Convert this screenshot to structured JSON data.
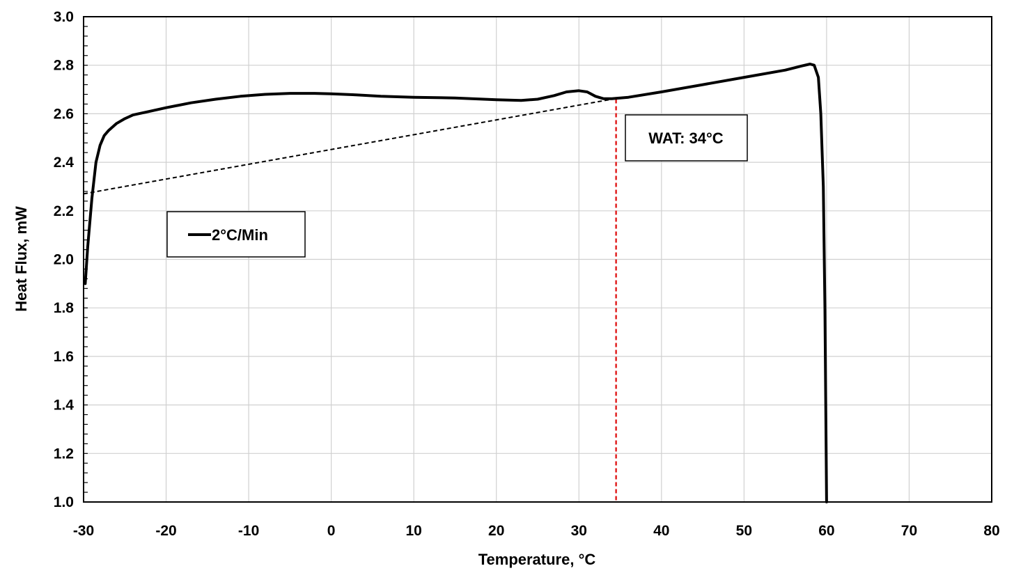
{
  "chart_data": {
    "type": "line",
    "xlabel": "Temperature, °C",
    "ylabel": "Heat Flux, mW",
    "xlim": [
      -30,
      80
    ],
    "ylim": [
      1.0,
      3.0
    ],
    "x_ticks": [
      -30,
      -20,
      -10,
      0,
      10,
      20,
      30,
      40,
      50,
      60,
      70,
      80
    ],
    "y_ticks": [
      "1.0",
      "1.2",
      "1.4",
      "1.6",
      "1.8",
      "2.0",
      "2.2",
      "2.4",
      "2.6",
      "2.8",
      "3.0"
    ],
    "grid": true,
    "legend": {
      "label": "2°C/Min",
      "placement": "middle-left"
    },
    "series": [
      {
        "name": "2°C/Min",
        "color": "#000000",
        "x": [
          -29.8,
          -29.5,
          -29.0,
          -28.5,
          -28.0,
          -27.5,
          -27.0,
          -26.0,
          -25.0,
          -24.0,
          -22.0,
          -20.0,
          -17.0,
          -14.0,
          -11.0,
          -8.0,
          -5.0,
          -2.0,
          0.0,
          3.0,
          6.0,
          10.0,
          15.0,
          20.0,
          23.0,
          25.0,
          27.0,
          28.5,
          30.0,
          31.0,
          32.0,
          33.0,
          34.0,
          36.0,
          40.0,
          45.0,
          50.0,
          55.0,
          57.0,
          58.0,
          58.5,
          59.0,
          59.3,
          59.6,
          59.8,
          59.9,
          60.0
        ],
        "y": [
          1.9,
          2.05,
          2.25,
          2.4,
          2.47,
          2.51,
          2.53,
          2.56,
          2.58,
          2.595,
          2.61,
          2.625,
          2.645,
          2.66,
          2.672,
          2.68,
          2.684,
          2.684,
          2.682,
          2.678,
          2.672,
          2.668,
          2.665,
          2.658,
          2.655,
          2.66,
          2.675,
          2.69,
          2.695,
          2.69,
          2.672,
          2.662,
          2.662,
          2.668,
          2.69,
          2.72,
          2.75,
          2.78,
          2.797,
          2.805,
          2.8,
          2.75,
          2.6,
          2.3,
          1.8,
          1.4,
          1.0
        ]
      }
    ],
    "baseline": {
      "style": "dashed",
      "color": "#000000",
      "x": [
        -30,
        34
      ],
      "y": [
        2.27,
        2.66
      ]
    },
    "marker_line": {
      "style": "dashed",
      "color": "#e02020",
      "x": 34.5,
      "y_from": 1.0,
      "y_to": 2.66
    },
    "annotation": {
      "text": "WAT: 34°C"
    }
  }
}
